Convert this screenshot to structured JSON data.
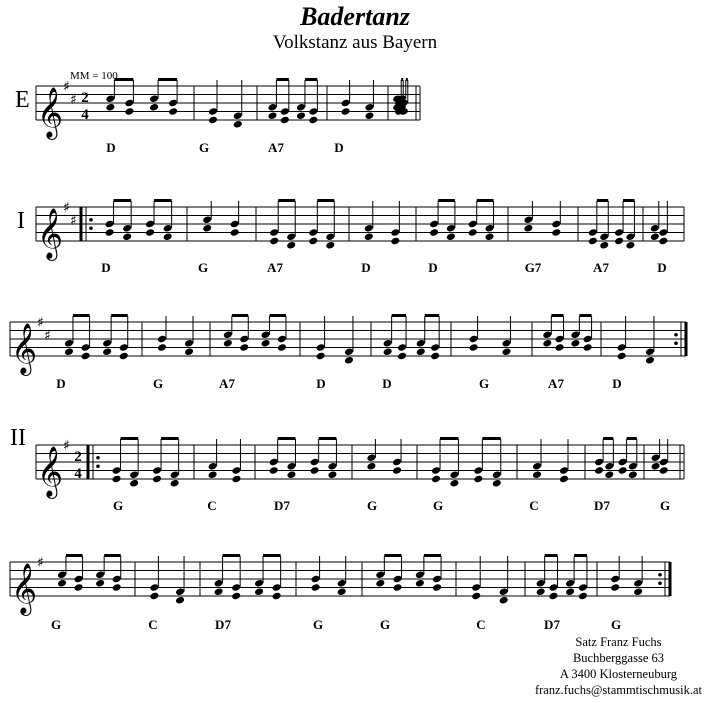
{
  "title": "Badertanz",
  "subtitle": "Volkstanz aus Bayern",
  "tempo": "MM = 100",
  "time_signature": {
    "top": "2",
    "bottom": "4"
  },
  "sections": [
    {
      "label": "E",
      "key": "D",
      "chords": [
        "D",
        "G",
        "A7",
        "D"
      ]
    },
    {
      "label": "I",
      "key": "D",
      "chords": [
        "D",
        "G",
        "A7",
        "D",
        "D",
        "G7",
        "A7",
        "D"
      ]
    },
    {
      "label": "",
      "key": "D",
      "chords": [
        "D",
        "G",
        "A7",
        "D",
        "D",
        "G",
        "A7",
        "D"
      ]
    },
    {
      "label": "II",
      "key": "G",
      "chords": [
        "G",
        "C",
        "D7",
        "G",
        "G",
        "C",
        "D7",
        "G"
      ]
    },
    {
      "label": "",
      "key": "G",
      "chords": [
        "G",
        "C",
        "D7",
        "G",
        "G",
        "C",
        "D7",
        "G"
      ]
    }
  ],
  "credits": {
    "line1": "Satz Franz Fuchs",
    "line2": "Buchberggasse 63",
    "line3": "A 3400 Klosterneuburg",
    "line4": "franz.fuchs@stammtischmusik.at"
  }
}
